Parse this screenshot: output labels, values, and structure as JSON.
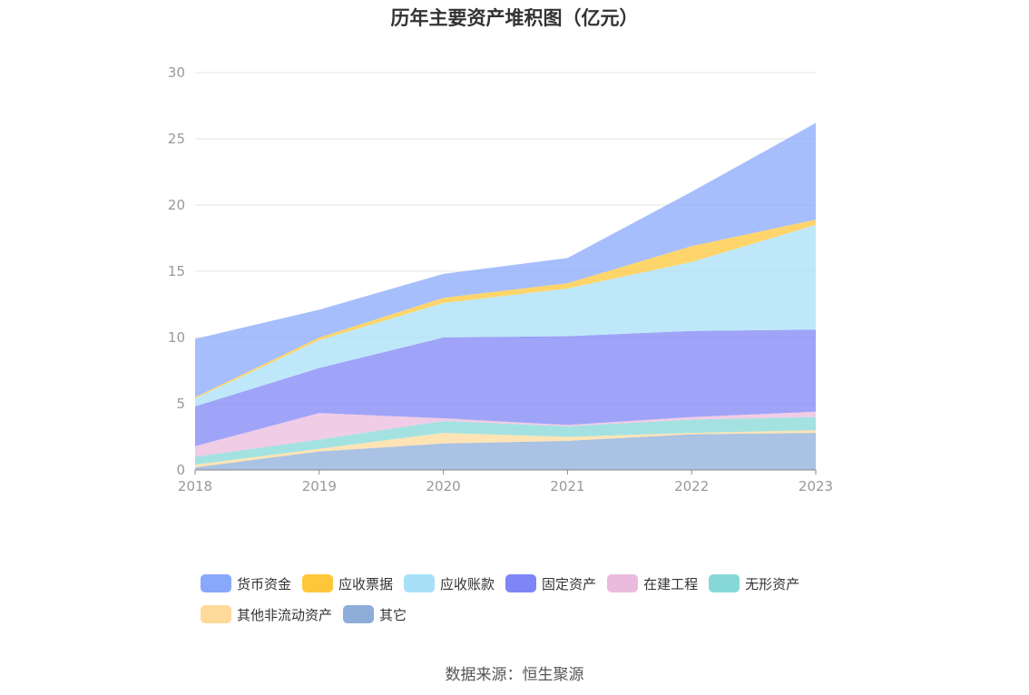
{
  "chart_data": {
    "type": "area",
    "stacked": true,
    "title": "历年主要资产堆积图（亿元）",
    "categories": [
      "2018",
      "2019",
      "2020",
      "2021",
      "2022",
      "2023"
    ],
    "ylim": [
      0,
      30
    ],
    "yticks": [
      0,
      5,
      10,
      15,
      20,
      25,
      30
    ],
    "grid": true,
    "legend_position": "bottom",
    "series": [
      {
        "name": "其它",
        "color": "#8eadd9",
        "values": [
          0.2,
          1.4,
          2.0,
          2.2,
          2.7,
          2.8
        ]
      },
      {
        "name": "其他非流动资产",
        "color": "#fedb9b",
        "values": [
          0.2,
          0.2,
          0.8,
          0.3,
          0.1,
          0.2
        ]
      },
      {
        "name": "无形资产",
        "color": "#86d8d8",
        "values": [
          0.6,
          0.7,
          0.9,
          0.8,
          1.0,
          1.0
        ]
      },
      {
        "name": "在建工程",
        "color": "#ebbbdd",
        "values": [
          0.8,
          2.0,
          0.2,
          0.1,
          0.2,
          0.4
        ]
      },
      {
        "name": "固定资产",
        "color": "#7f85f5",
        "values": [
          3.0,
          3.4,
          6.1,
          6.7,
          6.5,
          6.2
        ]
      },
      {
        "name": "应收账款",
        "color": "#a8e0f8",
        "values": [
          0.6,
          2.1,
          2.6,
          3.6,
          5.2,
          7.9
        ]
      },
      {
        "name": "应收票据",
        "color": "#fec73a",
        "values": [
          0.1,
          0.2,
          0.4,
          0.4,
          1.2,
          0.4
        ]
      },
      {
        "name": "货币资金",
        "color": "#88a8fb",
        "values": [
          4.4,
          2.1,
          1.8,
          1.9,
          4.1,
          7.3
        ]
      }
    ]
  },
  "legend_order": [
    "货币资金",
    "应收票据",
    "应收账款",
    "固定资产",
    "在建工程",
    "无形资产",
    "其他非流动资产",
    "其它"
  ],
  "source": "数据来源：恒生聚源"
}
